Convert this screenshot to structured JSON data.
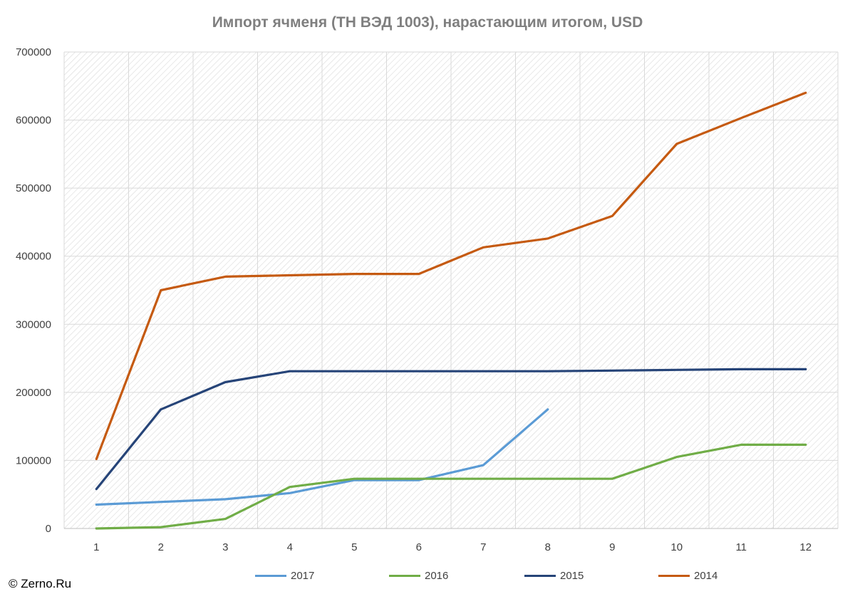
{
  "chart_data": {
    "type": "line",
    "title": "Импорт ячменя (ТН ВЭД 1003), нарастающим итогом, USD",
    "categories": [
      "1",
      "2",
      "3",
      "4",
      "5",
      "6",
      "7",
      "8",
      "9",
      "10",
      "11",
      "12"
    ],
    "ylim": [
      0,
      700000
    ],
    "yticks": [
      "0",
      "100000",
      "200000",
      "300000",
      "400000",
      "500000",
      "600000",
      "700000"
    ],
    "grid": true,
    "legend_position": "bottom",
    "series": [
      {
        "name": "2017",
        "color": "#5b9bd5",
        "values": [
          35000,
          39000,
          43000,
          52000,
          71000,
          71000,
          93000,
          175000,
          null,
          null,
          null,
          null
        ]
      },
      {
        "name": "2016",
        "color": "#70ad47",
        "values": [
          0,
          2000,
          14000,
          61000,
          73000,
          73000,
          73000,
          73000,
          73000,
          105000,
          123000,
          123000
        ]
      },
      {
        "name": "2015",
        "color": "#264478",
        "values": [
          58000,
          175000,
          215000,
          231000,
          231000,
          231000,
          231000,
          231000,
          232000,
          233000,
          234000,
          234000
        ]
      },
      {
        "name": "2014",
        "color": "#c55a11",
        "values": [
          102000,
          350000,
          370000,
          372000,
          374000,
          374000,
          413000,
          426000,
          459000,
          565000,
          603000,
          640000
        ]
      }
    ]
  },
  "footer": {
    "copyright": "© Zerno.Ru"
  }
}
